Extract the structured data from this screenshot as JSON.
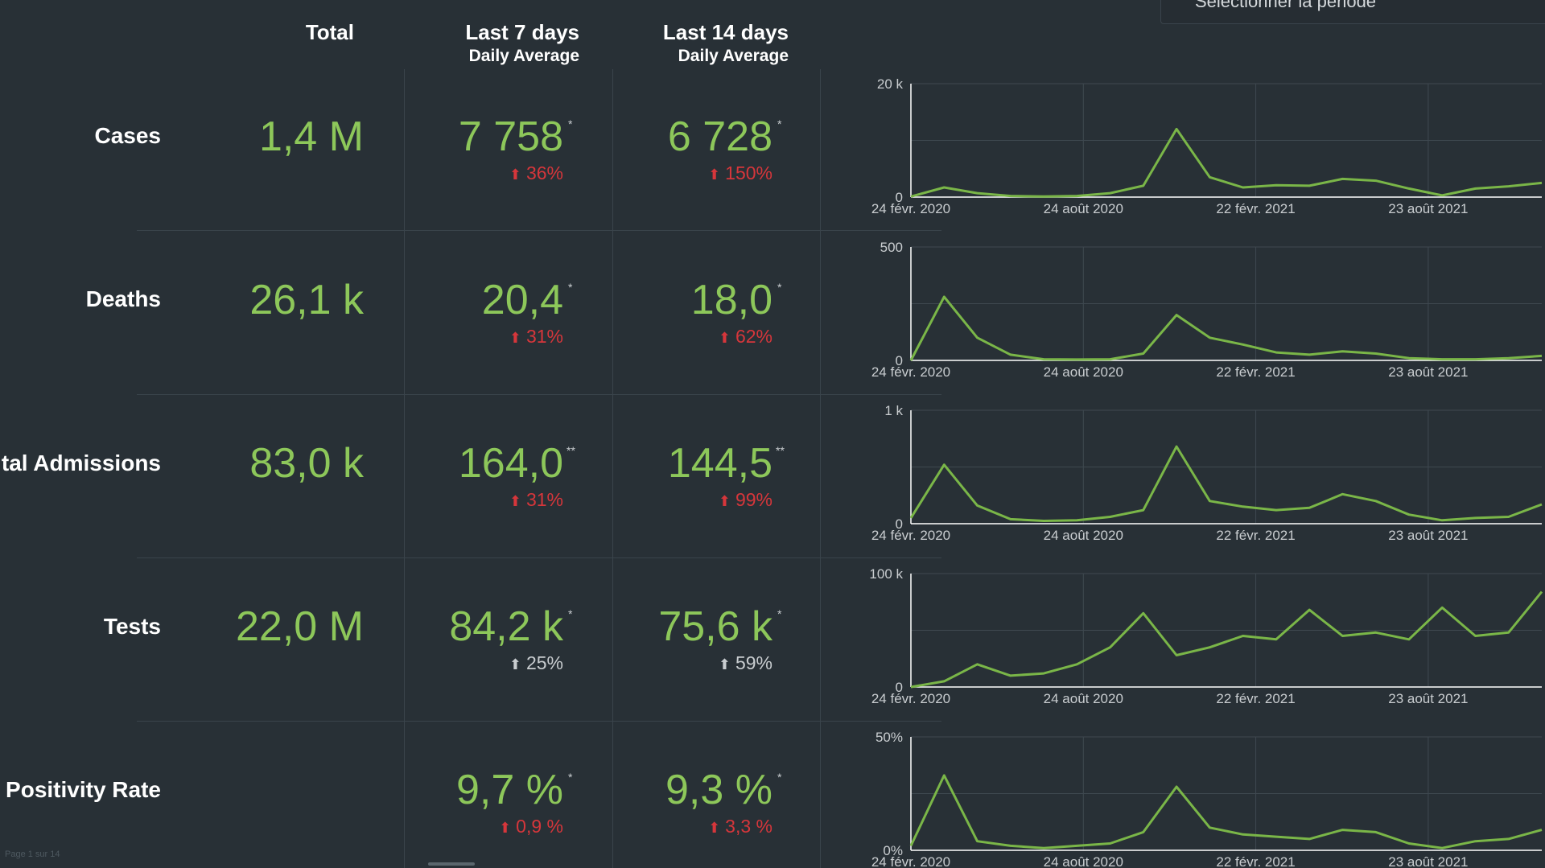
{
  "header": {
    "period_selector": "Sélectionner la période",
    "col_total": "Total",
    "col_7": "Last 7 days",
    "col_7_sub": "Daily Average",
    "col_14": "Last 14 days",
    "col_14_sub": "Daily Average"
  },
  "rows": [
    {
      "label": "Cases",
      "total": "1,4 M",
      "avg7": "7 758",
      "avg7_mark": "*",
      "chg7": "36%",
      "avg14": "6 728",
      "avg14_mark": "*",
      "chg14": "150%",
      "chg_color": "red"
    },
    {
      "label": "Deaths",
      "total": "26,1 k",
      "avg7": "20,4",
      "avg7_mark": "*",
      "chg7": "31%",
      "avg14": "18,0",
      "avg14_mark": "*",
      "chg14": "62%",
      "chg_color": "red"
    },
    {
      "label": "ital Admissions",
      "total": "83,0 k",
      "avg7": "164,0",
      "avg7_mark": "**",
      "chg7": "31%",
      "avg14": "144,5",
      "avg14_mark": "**",
      "chg14": "99%",
      "chg_color": "red"
    },
    {
      "label": "Tests",
      "total": "22,0 M",
      "avg7": "84,2 k",
      "avg7_mark": "*",
      "chg7": "25%",
      "avg14": "75,6 k",
      "avg14_mark": "*",
      "chg14": "59%",
      "chg_color": "grey"
    },
    {
      "label": "Positivity Rate",
      "total": "",
      "avg7": "9,7 %",
      "avg7_mark": "*",
      "chg7": "0,9 %",
      "avg14": "9,3 %",
      "avg14_mark": "*",
      "chg14": "3,3 %",
      "chg_color": "red"
    }
  ],
  "footer": {
    "pager": "Page 1 sur 14"
  },
  "colors": {
    "value_green": "#8dc75a",
    "line_green": "#7ab648",
    "change_red": "#d6363b",
    "change_grey": "#c9cdd0",
    "background": "#283036"
  },
  "chart_data": [
    {
      "type": "line",
      "title": "Cases",
      "x_ticks": [
        "24 févr. 2020",
        "24 août 2020",
        "22 févr. 2021",
        "23 août 2021"
      ],
      "y_ticks": [
        "0",
        "20 k"
      ],
      "ylim": [
        0,
        20000
      ],
      "grid": true,
      "x": [
        "2020-02",
        "2020-03",
        "2020-04",
        "2020-05",
        "2020-06",
        "2020-07",
        "2020-08",
        "2020-09",
        "2020-10",
        "2020-11",
        "2020-12",
        "2021-01",
        "2021-02",
        "2021-03",
        "2021-04",
        "2021-05",
        "2021-06",
        "2021-07",
        "2021-08",
        "2021-09"
      ],
      "values": [
        100,
        1700,
        700,
        200,
        100,
        200,
        700,
        2000,
        12000,
        3500,
        1700,
        2100,
        2000,
        3200,
        2900,
        1500,
        300,
        1500,
        1900,
        2500
      ]
    },
    {
      "type": "line",
      "title": "Deaths",
      "x_ticks": [
        "24 févr. 2020",
        "24 août 2020",
        "22 févr. 2021",
        "23 août 2021"
      ],
      "y_ticks": [
        "0",
        "500"
      ],
      "ylim": [
        0,
        500
      ],
      "grid": true,
      "x": [
        "2020-02",
        "2020-03",
        "2020-04",
        "2020-05",
        "2020-06",
        "2020-07",
        "2020-08",
        "2020-09",
        "2020-10",
        "2020-11",
        "2020-12",
        "2021-01",
        "2021-02",
        "2021-03",
        "2021-04",
        "2021-05",
        "2021-06",
        "2021-07",
        "2021-08",
        "2021-09"
      ],
      "values": [
        0,
        280,
        100,
        25,
        5,
        4,
        5,
        30,
        200,
        100,
        70,
        35,
        25,
        40,
        30,
        10,
        5,
        5,
        10,
        20
      ]
    },
    {
      "type": "line",
      "title": "ital Admissions",
      "x_ticks": [
        "24 févr. 2020",
        "24 août 2020",
        "22 févr. 2021",
        "23 août 2021"
      ],
      "y_ticks": [
        "0",
        "1 k"
      ],
      "ylim": [
        0,
        1000
      ],
      "grid": true,
      "x": [
        "2020-02",
        "2020-03",
        "2020-04",
        "2020-05",
        "2020-06",
        "2020-07",
        "2020-08",
        "2020-09",
        "2020-10",
        "2020-11",
        "2020-12",
        "2021-01",
        "2021-02",
        "2021-03",
        "2021-04",
        "2021-05",
        "2021-06",
        "2021-07",
        "2021-08",
        "2021-09"
      ],
      "values": [
        50,
        520,
        160,
        40,
        25,
        30,
        60,
        120,
        680,
        200,
        150,
        120,
        140,
        260,
        200,
        80,
        30,
        50,
        60,
        170
      ]
    },
    {
      "type": "line",
      "title": "Tests",
      "x_ticks": [
        "24 févr. 2020",
        "24 août 2020",
        "22 févr. 2021",
        "23 août 2021"
      ],
      "y_ticks": [
        "0",
        "100 k"
      ],
      "ylim": [
        0,
        100000
      ],
      "grid": true,
      "x": [
        "2020-02",
        "2020-03",
        "2020-04",
        "2020-05",
        "2020-06",
        "2020-07",
        "2020-08",
        "2020-09",
        "2020-10",
        "2020-11",
        "2020-12",
        "2021-01",
        "2021-02",
        "2021-03",
        "2021-04",
        "2021-05",
        "2021-06",
        "2021-07",
        "2021-08",
        "2021-09"
      ],
      "values": [
        0,
        5000,
        20000,
        10000,
        12000,
        20000,
        35000,
        65000,
        28000,
        35000,
        45000,
        42000,
        68000,
        45000,
        48000,
        42000,
        70000,
        45000,
        48000,
        84000
      ]
    },
    {
      "type": "line",
      "title": "Positivity Rate",
      "x_ticks": [
        "24 févr. 2020",
        "24 août 2020",
        "22 févr. 2021",
        "23 août 2021"
      ],
      "y_ticks": [
        "0%",
        "50%"
      ],
      "ylim": [
        0,
        50
      ],
      "grid": true,
      "x": [
        "2020-02",
        "2020-03",
        "2020-04",
        "2020-05",
        "2020-06",
        "2020-07",
        "2020-08",
        "2020-09",
        "2020-10",
        "2020-11",
        "2020-12",
        "2021-01",
        "2021-02",
        "2021-03",
        "2021-04",
        "2021-05",
        "2021-06",
        "2021-07",
        "2021-08",
        "2021-09"
      ],
      "values": [
        2,
        33,
        4,
        2,
        1,
        2,
        3,
        8,
        28,
        10,
        7,
        6,
        5,
        9,
        8,
        3,
        1,
        4,
        5,
        9
      ]
    }
  ]
}
